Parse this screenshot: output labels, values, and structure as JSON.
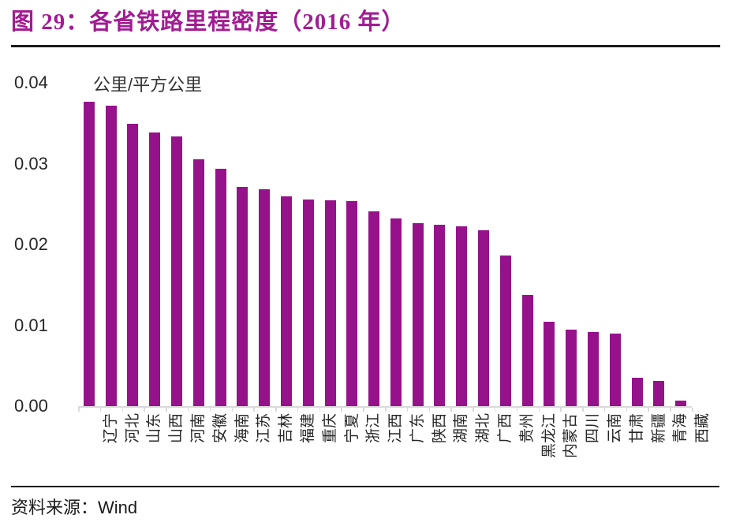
{
  "figure": {
    "title": "图 29：各省铁路里程密度（2016 年）",
    "source_label": "资料来源：",
    "source_value": "Wind"
  },
  "chart_data": {
    "type": "bar",
    "title": "各省铁路里程密度（2016 年）",
    "unit_label": "公里/平方公里",
    "ylabel": "公里/平方公里",
    "xlabel": "",
    "ylim": [
      0,
      0.04
    ],
    "y_tick_labels": [
      "0.04",
      "0.03",
      "0.02",
      "0.01",
      "0.00"
    ],
    "grid": false,
    "legend": false,
    "x_tick_label_rotation": 90,
    "bar_color": "#96128B",
    "axis_color": "#d9d9d9",
    "categories": [
      "辽宁",
      "河北",
      "山东",
      "山西",
      "河南",
      "安徽",
      "海南",
      "江苏",
      "吉林",
      "福建",
      "重庆",
      "宁夏",
      "浙江",
      "江西",
      "广东",
      "陕西",
      "湖南",
      "湖北",
      "广西",
      "贵州",
      "黑龙江",
      "内蒙古",
      "四川",
      "云南",
      "甘肃",
      "新疆",
      "青海",
      "西藏"
    ],
    "values": [
      0.0377,
      0.0372,
      0.0349,
      0.0339,
      0.0334,
      0.0305,
      0.0294,
      0.0271,
      0.0268,
      0.026,
      0.0256,
      0.0255,
      0.0254,
      0.0241,
      0.0232,
      0.0226,
      0.0224,
      0.0222,
      0.0218,
      0.0186,
      0.0138,
      0.0104,
      0.0095,
      0.0092,
      0.009,
      0.0035,
      0.0031,
      0.0007
    ]
  }
}
